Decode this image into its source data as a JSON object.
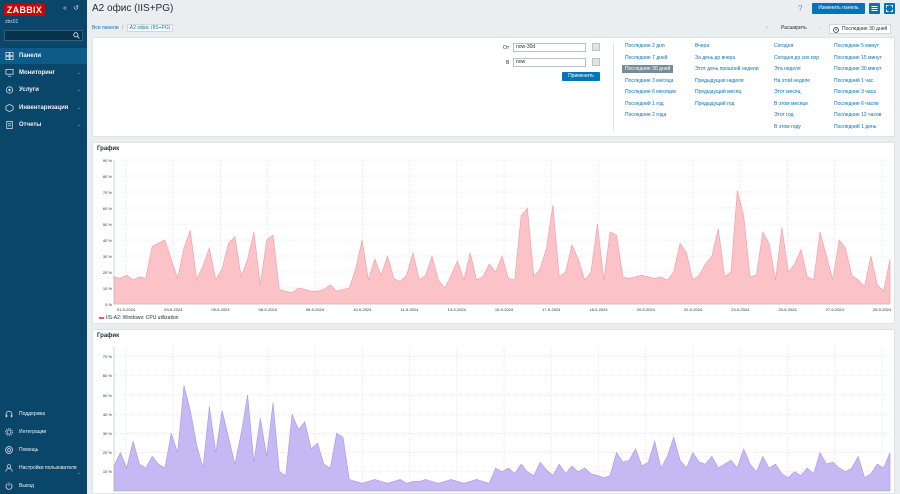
{
  "app": {
    "logo": "ZABBIX",
    "server": "zbx01"
  },
  "sidebar": {
    "nav": [
      {
        "label": "Панели",
        "icon": "dashboard-icon",
        "active": true
      },
      {
        "label": "Мониторинг",
        "icon": "monitor-icon"
      },
      {
        "label": "Услуги",
        "icon": "services-icon"
      },
      {
        "label": "Инвентаризация",
        "icon": "inventory-icon"
      },
      {
        "label": "Отчеты",
        "icon": "reports-icon"
      }
    ],
    "footer": [
      {
        "label": "Поддержка",
        "icon": "headset-icon"
      },
      {
        "label": "Интеграции",
        "icon": "integrations-icon"
      },
      {
        "label": "Помощь",
        "icon": "help-icon"
      },
      {
        "label": "Настройки пользователя",
        "icon": "user-icon"
      },
      {
        "label": "Выход",
        "icon": "power-icon"
      }
    ]
  },
  "header": {
    "title": "A2 офис (IIS+PG)",
    "help": "?",
    "edit_label": "Изменить панель"
  },
  "breadcrumb": {
    "root": "Все панели",
    "sep": "/",
    "current": "A2 офис (IIS+PG)"
  },
  "topnav": {
    "prev": "‹",
    "zoom_out": "Расширить",
    "next": "›",
    "range": "Последние 30 дней"
  },
  "timefilter": {
    "from_label": "От",
    "from_value": "now-30d",
    "to_label": "В",
    "to_value": "now",
    "apply_label": "Применить",
    "columns": [
      [
        "Последние 2 дня",
        "Последние 7 дней",
        "Последние 30 дней",
        "Последние 3 месяца",
        "Последние 6 месяцев",
        "Последний 1 год",
        "Последние 2 года"
      ],
      [
        "Вчера",
        "За день до вчера",
        "Этот день прошлой недели",
        "Предыдущая неделя",
        "Предыдущий месяц",
        "Предыдущий год"
      ],
      [
        "Сегодня",
        "Сегодня до сих пор",
        "Эта неделя",
        "На этой неделе",
        "Этот месяц",
        "В этом месяце",
        "Этот год",
        "В этом году"
      ],
      [
        "Последние 5 минут",
        "Последние 15 минут",
        "Последние 30 минут",
        "Последний 1 час",
        "Последние 3 часа",
        "Последние 6 часов",
        "Последние 12 часов",
        "Последний 1 день"
      ]
    ],
    "selected": "Последние 30 дней"
  },
  "chart_data": [
    {
      "type": "area",
      "title": "График",
      "y_ticks": [
        "90 %",
        "80 %",
        "70 %",
        "60 %",
        "50 %",
        "40 %",
        "30 %",
        "20 %",
        "10 %",
        "0 %"
      ],
      "ylim": [
        0,
        90
      ],
      "x_ticks": [
        "01-9-2024",
        "03-9-2024",
        "05-9-2024",
        "06-9-2024",
        "08-9-2024",
        "10-9-2024",
        "11-9-2024",
        "13-9-2024",
        "15-9-2024",
        "17-9-2024",
        "18-9-2024",
        "20-9-2024",
        "22-9-2024",
        "23-9-2024",
        "25-9-2024",
        "27-9-2024",
        "29-9-2024"
      ],
      "grid": true,
      "series": [
        {
          "name": "IIS-A2: Windows: CPU utilization",
          "color": "#f7a8ae",
          "values": [
            17,
            16,
            18,
            15,
            17,
            16,
            36,
            38,
            40,
            28,
            16,
            35,
            46,
            15,
            24,
            35,
            15,
            22,
            38,
            42,
            17,
            28,
            45,
            12,
            40,
            43,
            9,
            8,
            7,
            10,
            9,
            8,
            8,
            9,
            12,
            8,
            9,
            10,
            22,
            40,
            15,
            28,
            18,
            30,
            16,
            14,
            18,
            32,
            15,
            18,
            30,
            15,
            10,
            18,
            27,
            15,
            32,
            15,
            17,
            25,
            20,
            30,
            16,
            15,
            55,
            60,
            17,
            22,
            35,
            62,
            17,
            20,
            37,
            28,
            15,
            20,
            50,
            15,
            45,
            43,
            17,
            16,
            17,
            18,
            17,
            16,
            17,
            15,
            20,
            38,
            32,
            15,
            18,
            25,
            30,
            47,
            17,
            20,
            71,
            55,
            17,
            18,
            45,
            38,
            15,
            48,
            20,
            25,
            34,
            17,
            15,
            45,
            30,
            15,
            40,
            35,
            18,
            15,
            11,
            30,
            12,
            8,
            28
          ]
        }
      ]
    },
    {
      "type": "area",
      "title": "График",
      "y_ticks": [
        "70 %",
        "60 %",
        "50 %",
        "40 %",
        "30 %",
        "20 %",
        "10 %"
      ],
      "ylim": [
        0,
        75
      ],
      "grid": true,
      "series": [
        {
          "color": "#b4a4f0",
          "values": [
            13,
            20,
            12,
            26,
            14,
            12,
            18,
            14,
            12,
            30,
            20,
            55,
            42,
            24,
            12,
            44,
            20,
            42,
            28,
            14,
            30,
            50,
            15,
            38,
            18,
            46,
            10,
            8,
            40,
            32,
            36,
            22,
            25,
            14,
            12,
            30,
            28,
            6,
            5,
            4,
            5,
            6,
            5,
            4,
            5,
            6,
            4,
            5,
            5,
            6,
            5,
            4,
            5,
            6,
            5,
            4,
            5,
            6,
            5,
            4,
            12,
            10,
            12,
            9,
            14,
            10,
            8,
            15,
            11,
            8,
            14,
            9,
            13,
            10,
            12,
            9,
            8,
            7,
            8,
            20,
            15,
            16,
            22,
            13,
            15,
            26,
            12,
            18,
            28,
            16,
            12,
            20,
            15,
            14,
            18,
            12,
            14,
            16,
            12,
            22,
            14,
            10,
            18,
            12,
            14,
            9,
            7,
            10,
            8,
            12,
            9,
            20,
            14,
            15,
            12,
            10,
            12,
            18,
            7,
            9,
            14,
            12,
            20
          ]
        }
      ]
    }
  ]
}
